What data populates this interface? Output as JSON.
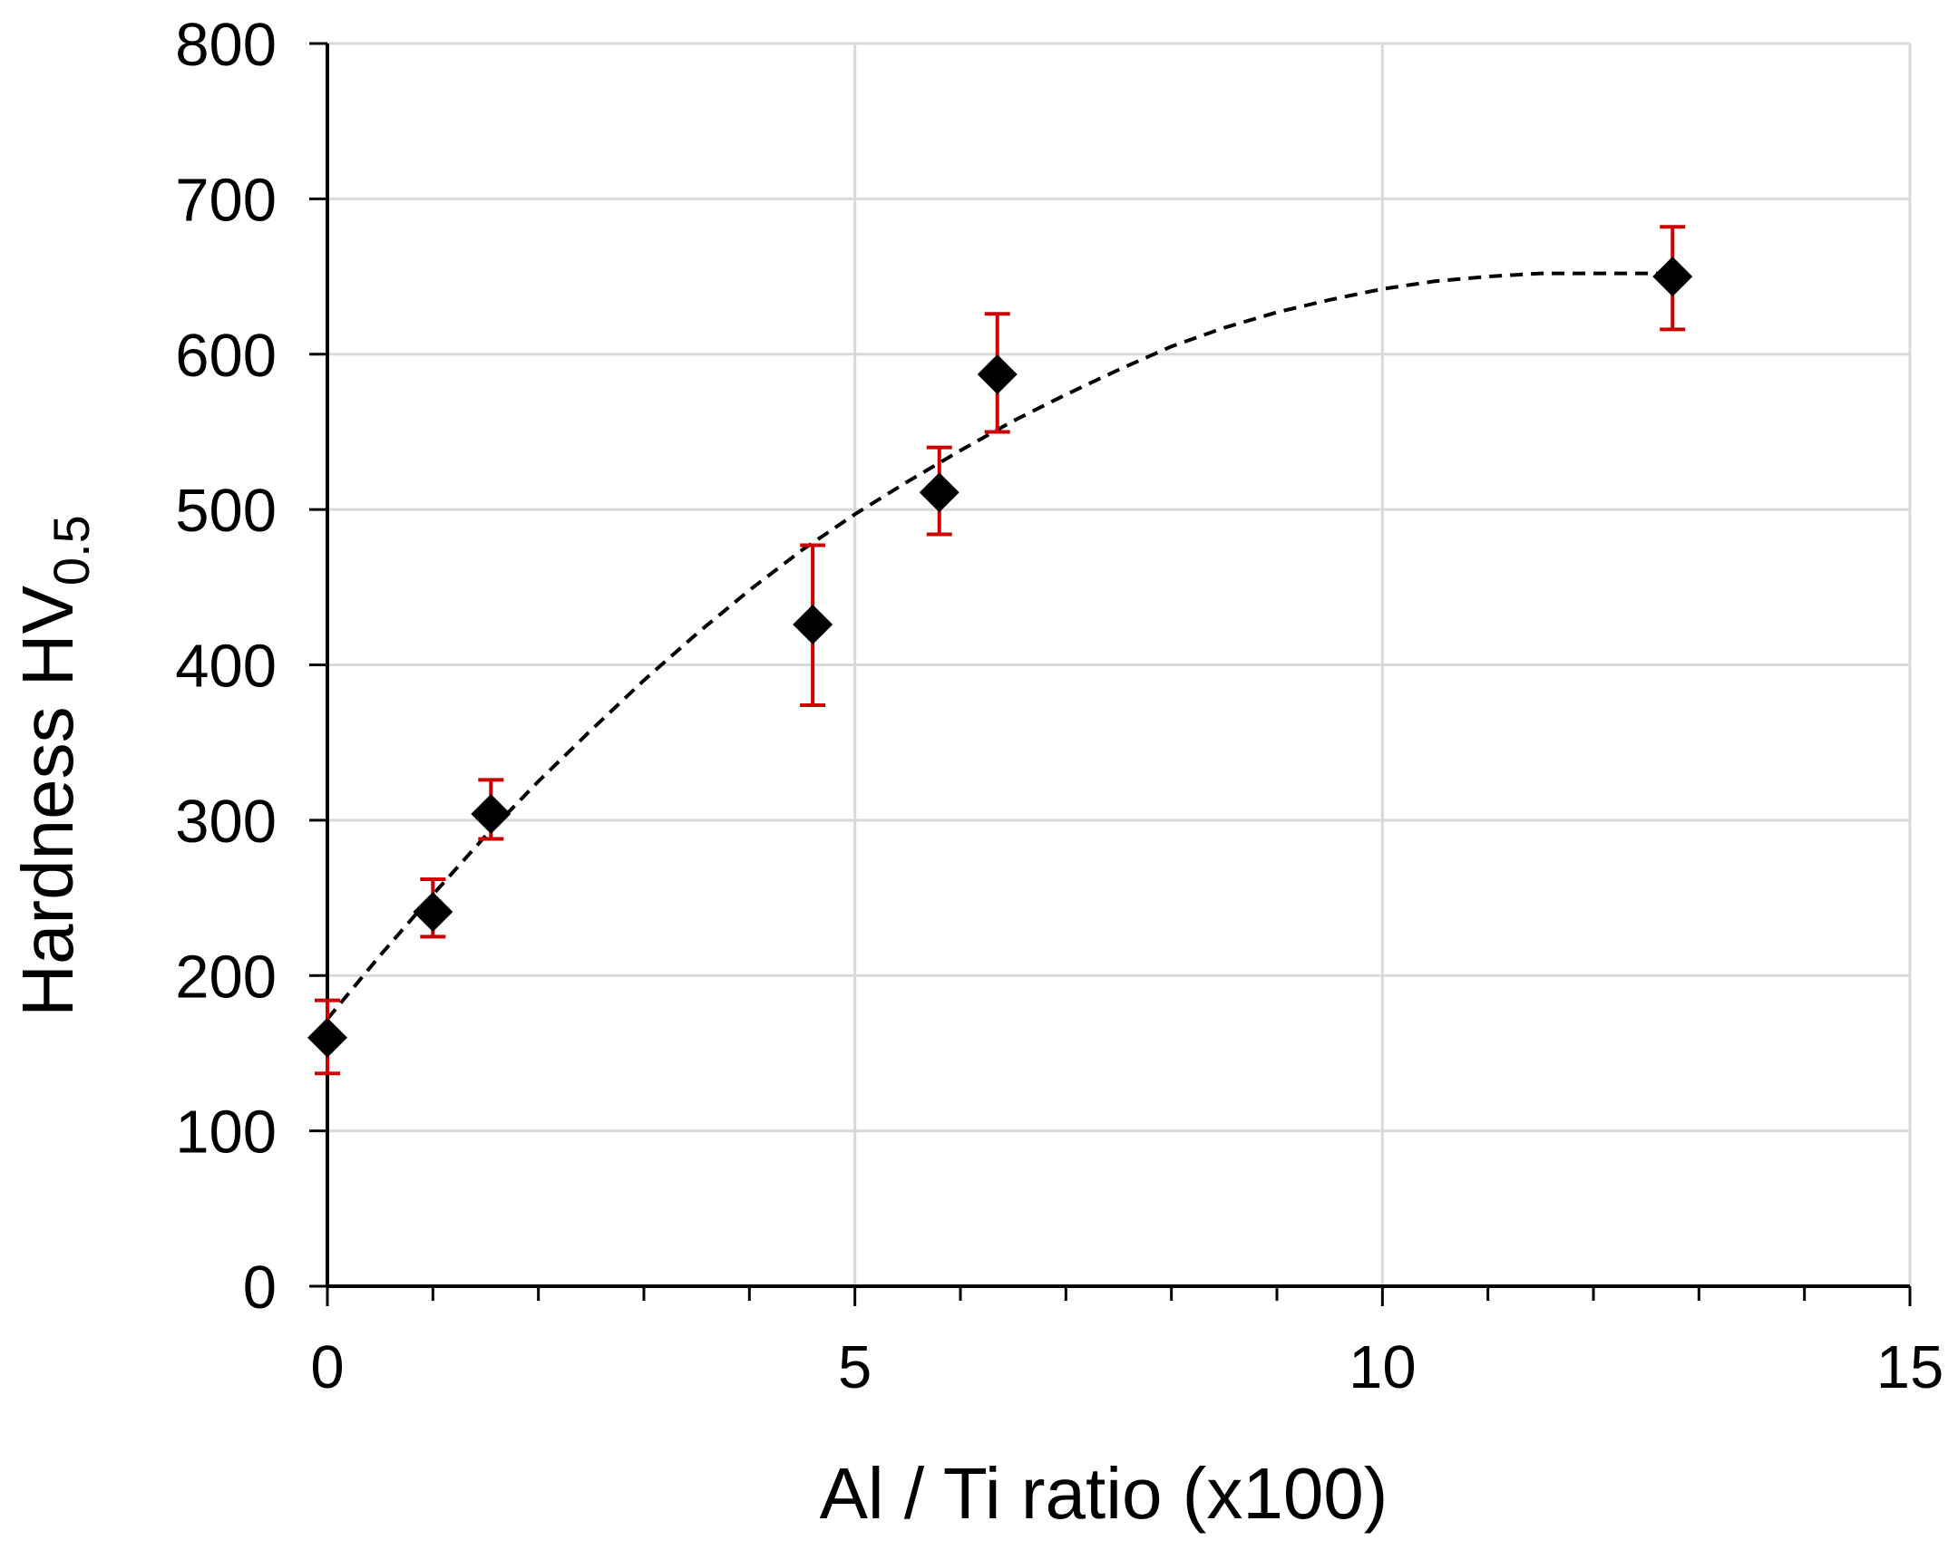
{
  "chart_data": {
    "type": "scatter",
    "title": "",
    "xlabel": "Al / Ti ratio (x100)",
    "ylabel": {
      "main": "Hardness HV",
      "subscript": "0.5"
    },
    "xlim": [
      0,
      15
    ],
    "ylim": [
      0,
      800
    ],
    "x_major_ticks": [
      0,
      5,
      10,
      15
    ],
    "x_minor_ticks": [
      1,
      2,
      3,
      4,
      6,
      7,
      8,
      9,
      11,
      12,
      13,
      14
    ],
    "y_major_ticks": [
      0,
      100,
      200,
      300,
      400,
      500,
      600,
      700,
      800
    ],
    "grid": true,
    "legend": "none",
    "series": [
      {
        "marker": "diamond",
        "color": "#000000",
        "error_color": "#cc0000",
        "points": [
          {
            "x": 0.0,
            "y": 160,
            "err_low": 137,
            "err_high": 184
          },
          {
            "x": 1.0,
            "y": 241,
            "err_low": 225,
            "err_high": 262
          },
          {
            "x": 1.55,
            "y": 304,
            "err_low": 288,
            "err_high": 326
          },
          {
            "x": 4.6,
            "y": 426,
            "err_low": 374,
            "err_high": 477
          },
          {
            "x": 5.8,
            "y": 511,
            "err_low": 484,
            "err_high": 540
          },
          {
            "x": 6.35,
            "y": 587,
            "err_low": 550,
            "err_high": 626
          },
          {
            "x": 12.75,
            "y": 650,
            "err_low": 616,
            "err_high": 682
          }
        ]
      }
    ],
    "trendline": {
      "style": "dashed",
      "color": "#000000",
      "x": [
        0.0,
        0.5,
        1.0,
        1.5,
        2.0,
        2.5,
        3.0,
        3.5,
        4.0,
        4.5,
        5.0,
        5.5,
        6.0,
        6.5,
        7.0,
        7.5,
        8.0,
        8.5,
        9.0,
        9.5,
        10.0,
        10.5,
        11.0,
        11.5,
        12.0,
        12.5,
        12.75
      ],
      "y": [
        172,
        213,
        252,
        290,
        325,
        358,
        390,
        420,
        448,
        474,
        497,
        518,
        538,
        557,
        574,
        590,
        605,
        617,
        627,
        635,
        642,
        647,
        650,
        652,
        652,
        652,
        652
      ]
    }
  }
}
